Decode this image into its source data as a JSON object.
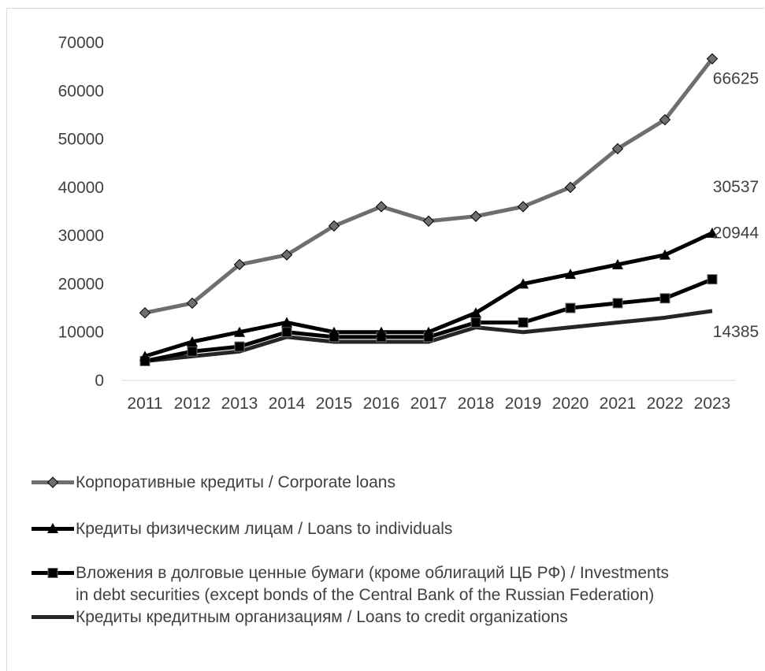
{
  "chart_data": {
    "type": "line",
    "categories": [
      "2011",
      "2012",
      "2013",
      "2014",
      "2015",
      "2016",
      "2017",
      "2018",
      "2019",
      "2020",
      "2021",
      "2022",
      "2023"
    ],
    "ylim": [
      0,
      70000
    ],
    "yticks": [
      "0",
      "10000",
      "20000",
      "30000",
      "40000",
      "50000",
      "60000",
      "70000"
    ],
    "grid": false,
    "legend_position": "bottom",
    "series": [
      {
        "name": "Корпоративные кредиты / Corporate loans",
        "values": [
          14000,
          16000,
          24000,
          26000,
          32000,
          36000,
          33000,
          34000,
          36000,
          40000,
          48000,
          54000,
          66625
        ],
        "color": "#6e6e6e",
        "marker": "diamond",
        "end_label": "66625"
      },
      {
        "name": "Кредиты физическим лицам / Loans to individuals",
        "values": [
          5000,
          8000,
          10000,
          12000,
          10000,
          10000,
          10000,
          14000,
          20000,
          22000,
          24000,
          26000,
          30537
        ],
        "color": "#000000",
        "marker": "triangle",
        "end_label": "30537"
      },
      {
        "name_line1": "Вложения в долговые ценные бумаги (кроме облигаций ЦБ РФ) / Investments",
        "name_line2": "in debt securities (except bonds of the Central Bank of the Russian Federation)",
        "values": [
          4000,
          6000,
          7000,
          10000,
          9000,
          9000,
          9000,
          12000,
          12000,
          15000,
          16000,
          17000,
          20944
        ],
        "color": "#000000",
        "marker": "square",
        "end_label": "20944"
      },
      {
        "name": "Кредиты кредитным организациям / Loans to credit organizations",
        "values": [
          4000,
          5000,
          6000,
          9000,
          8000,
          8000,
          8000,
          11000,
          10000,
          11000,
          12000,
          13000,
          14385
        ],
        "color": "#262626",
        "marker": "none",
        "end_label": "14385"
      }
    ]
  }
}
